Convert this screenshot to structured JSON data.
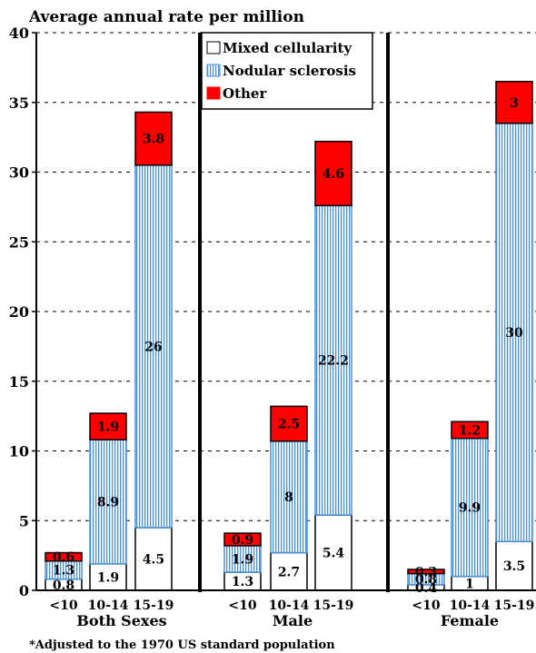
{
  "chart_data": {
    "type": "bar",
    "title": "Average annual rate per million",
    "footnote": "*Adjusted to the 1970 US standard population",
    "ylim": [
      0,
      40
    ],
    "yticks": [
      0,
      5,
      10,
      15,
      20,
      25,
      30,
      35,
      40
    ],
    "grid": "horizontal dashed",
    "legend_position": "top-center",
    "groups": [
      {
        "label": "Both Sexes",
        "categories": [
          "<10",
          "10-14",
          "15-19"
        ]
      },
      {
        "label": "Male",
        "categories": [
          "<10",
          "10-14",
          "15-19"
        ]
      },
      {
        "label": "Female",
        "categories": [
          "<10",
          "10-14",
          "15-19"
        ]
      }
    ],
    "series": [
      {
        "name": "Mixed cellularity",
        "style": "white",
        "values": [
          0.8,
          1.9,
          4.5,
          1.3,
          2.7,
          5.4,
          0.4,
          1,
          3.5
        ],
        "labels": [
          "0.8",
          "1.9",
          "4.5",
          "1.3",
          "2.7",
          "5.4",
          "0.4",
          "1",
          "3.5"
        ]
      },
      {
        "name": "Nodular sclerosis",
        "style": "blue-vertical-hatch",
        "values": [
          1.3,
          8.9,
          26,
          1.9,
          8,
          22.2,
          0.8,
          9.9,
          30
        ],
        "labels": [
          "1.3",
          "8.9",
          "26",
          "1.9",
          "8",
          "22.2",
          "0.8",
          "9.9",
          "30"
        ]
      },
      {
        "name": "Other",
        "style": "red",
        "values": [
          0.6,
          1.9,
          3.8,
          0.9,
          2.5,
          4.6,
          0.3,
          1.2,
          3
        ],
        "labels": [
          "0.6",
          "1.9",
          "3.8",
          "0.9",
          "2.5",
          "4.6",
          "0.3",
          "1.2",
          "3"
        ]
      }
    ],
    "colors": {
      "mixed": "#ffffff",
      "nodular_line": "#4a90d9",
      "other": "#ff0000",
      "axis": "#000000"
    }
  }
}
